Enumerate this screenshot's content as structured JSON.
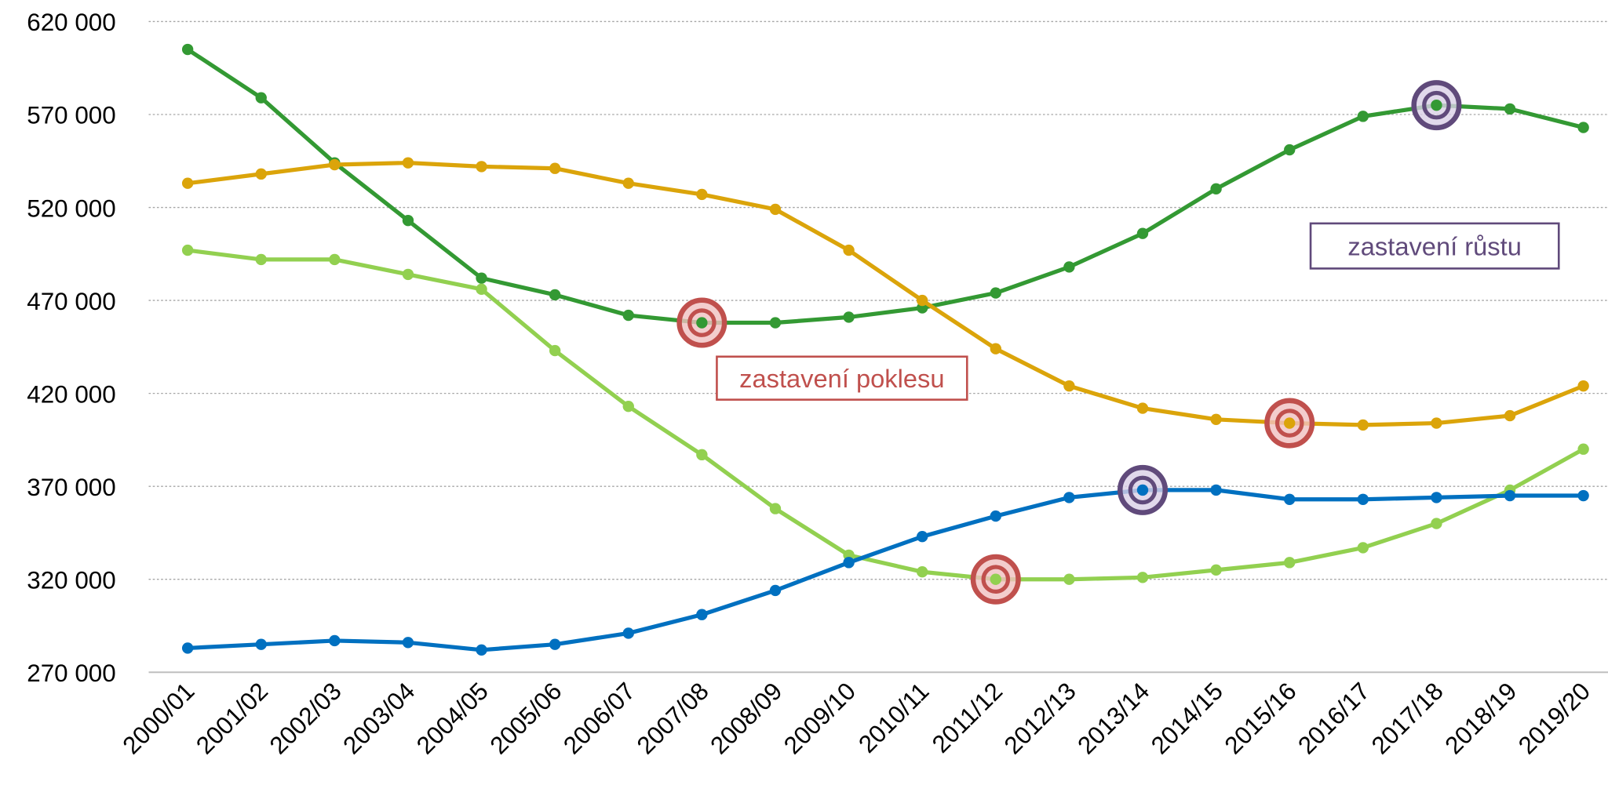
{
  "chart_data": {
    "type": "line",
    "categories": [
      "2000/01",
      "2001/02",
      "2002/03",
      "2003/04",
      "2004/05",
      "2005/06",
      "2006/07",
      "2007/08",
      "2008/09",
      "2009/10",
      "2010/11",
      "2011/12",
      "2012/13",
      "2013/14",
      "2014/15",
      "2015/16",
      "2016/17",
      "2017/18",
      "2018/19",
      "2019/20"
    ],
    "series": [
      {
        "color": "#339933",
        "values": [
          605000,
          579000,
          544000,
          513000,
          482000,
          473000,
          462000,
          458000,
          458000,
          461000,
          466000,
          474000,
          488000,
          506000,
          530000,
          551000,
          569000,
          575000,
          573000,
          563000
        ]
      },
      {
        "color": "#dba40a",
        "values": [
          533000,
          538000,
          543000,
          544000,
          542000,
          541000,
          533000,
          527000,
          519000,
          497000,
          470000,
          444000,
          424000,
          412000,
          406000,
          404000,
          403000,
          404000,
          408000,
          424000
        ]
      },
      {
        "color": "#92d050",
        "values": [
          497000,
          492000,
          492000,
          484000,
          476000,
          443000,
          413000,
          387000,
          358000,
          333000,
          324000,
          320000,
          320000,
          321000,
          325000,
          329000,
          337000,
          350000,
          368000,
          390000
        ]
      },
      {
        "color": "#0070c0",
        "values": [
          283000,
          285000,
          287000,
          286000,
          282000,
          285000,
          291000,
          301000,
          314000,
          329000,
          343000,
          354000,
          364000,
          368000,
          368000,
          363000,
          363000,
          364000,
          365000,
          365000
        ]
      }
    ],
    "ylim": [
      270000,
      620000
    ],
    "yticks": [
      {
        "value": 270000,
        "label": "270 000"
      },
      {
        "value": 320000,
        "label": "320 000"
      },
      {
        "value": 370000,
        "label": "370 000"
      },
      {
        "value": 420000,
        "label": "420 000"
      },
      {
        "value": 470000,
        "label": "470 000"
      },
      {
        "value": 520000,
        "label": "520 000"
      },
      {
        "value": 570000,
        "label": "570 000"
      },
      {
        "value": 620000,
        "label": "620 000"
      }
    ],
    "grid": true,
    "annotations": [
      {
        "text": "zastavení poklesu",
        "color": "#c0504d"
      },
      {
        "text": "zastavení růstu",
        "color": "#604a7b"
      }
    ],
    "highlights": [
      {
        "series": 0,
        "category": "2007/08",
        "color": "#c0504d"
      },
      {
        "series": 2,
        "category": "2011/12",
        "color": "#c0504d"
      },
      {
        "series": 1,
        "category": "2015/16",
        "color": "#c0504d"
      },
      {
        "series": 3,
        "category": "2013/14",
        "color": "#604a7b"
      },
      {
        "series": 0,
        "category": "2017/18",
        "color": "#604a7b"
      }
    ]
  }
}
